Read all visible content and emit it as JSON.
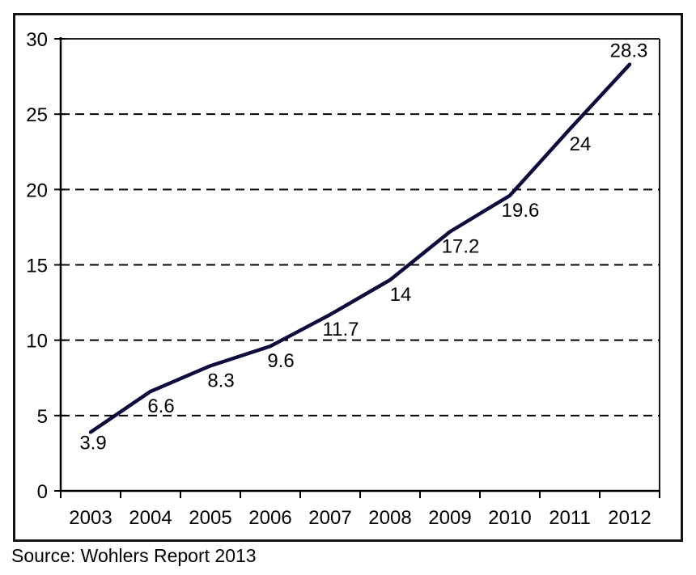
{
  "chart_data": {
    "type": "line",
    "categories": [
      "2003",
      "2004",
      "2005",
      "2006",
      "2007",
      "2008",
      "2009",
      "2010",
      "2011",
      "2012"
    ],
    "values": [
      3.9,
      6.6,
      8.3,
      9.6,
      11.7,
      14,
      17.2,
      19.6,
      24,
      28.3
    ],
    "title": "",
    "xlabel": "",
    "ylabel": "",
    "ylim": [
      0,
      30
    ],
    "ytick_step": 5,
    "yticks": [
      0,
      5,
      10,
      15,
      20,
      25,
      30
    ],
    "grid": "horizontal-dashed",
    "legend": "none",
    "data_labels_shown": true,
    "line_color": "#0d0d3d",
    "gridline_color": "#000000",
    "axis_color": "#000000",
    "label_color": "#000000"
  },
  "source": {
    "text": "Source: Wohlers Report 2013"
  },
  "colors": {
    "background": "#ffffff",
    "outer_border": "#141414"
  }
}
